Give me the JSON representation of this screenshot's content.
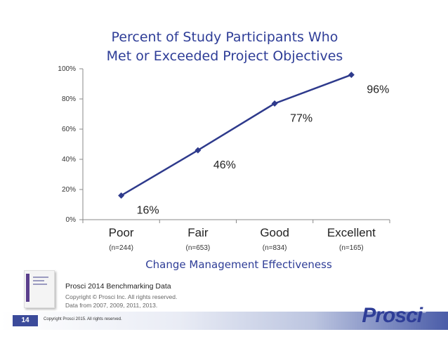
{
  "chart_data": {
    "type": "line",
    "title": [
      "Percent of Study Participants Who",
      "Met or Exceeded Project Objectives"
    ],
    "xlabel": "Change Management Effectiveness",
    "ylabel": "",
    "categories": [
      "Poor",
      "Fair",
      "Good",
      "Excellent"
    ],
    "category_n": [
      "(n=244)",
      "(n=653)",
      "(n=834)",
      "(n=165)"
    ],
    "series": [
      {
        "values": [
          16,
          46,
          77,
          96
        ],
        "data_labels": [
          "16%",
          "46%",
          "77%",
          "96%"
        ]
      }
    ],
    "y_ticks": [
      0,
      20,
      40,
      60,
      80,
      100
    ],
    "y_tick_labels": [
      "0%",
      "20%",
      "40%",
      "60%",
      "80%",
      "100%"
    ],
    "ylim": [
      0,
      100
    ],
    "grid": false,
    "legend": "none",
    "line_color": "#2e3a8c",
    "marker": "diamond"
  },
  "source": {
    "title": "Prosci 2014 Benchmarking Data",
    "copyright": "Copyright © Prosci Inc. All rights reserved.",
    "years": "Data from 2007, 2009, 2011, 2013."
  },
  "footer": {
    "page_number": "14",
    "copyright": "Copyright Prosci 2015. All rights reserved.",
    "logo_text": "Prosci",
    "logo_mark": "®"
  },
  "colors": {
    "title": "#2e3d97",
    "accent": "#3b4a9a"
  }
}
